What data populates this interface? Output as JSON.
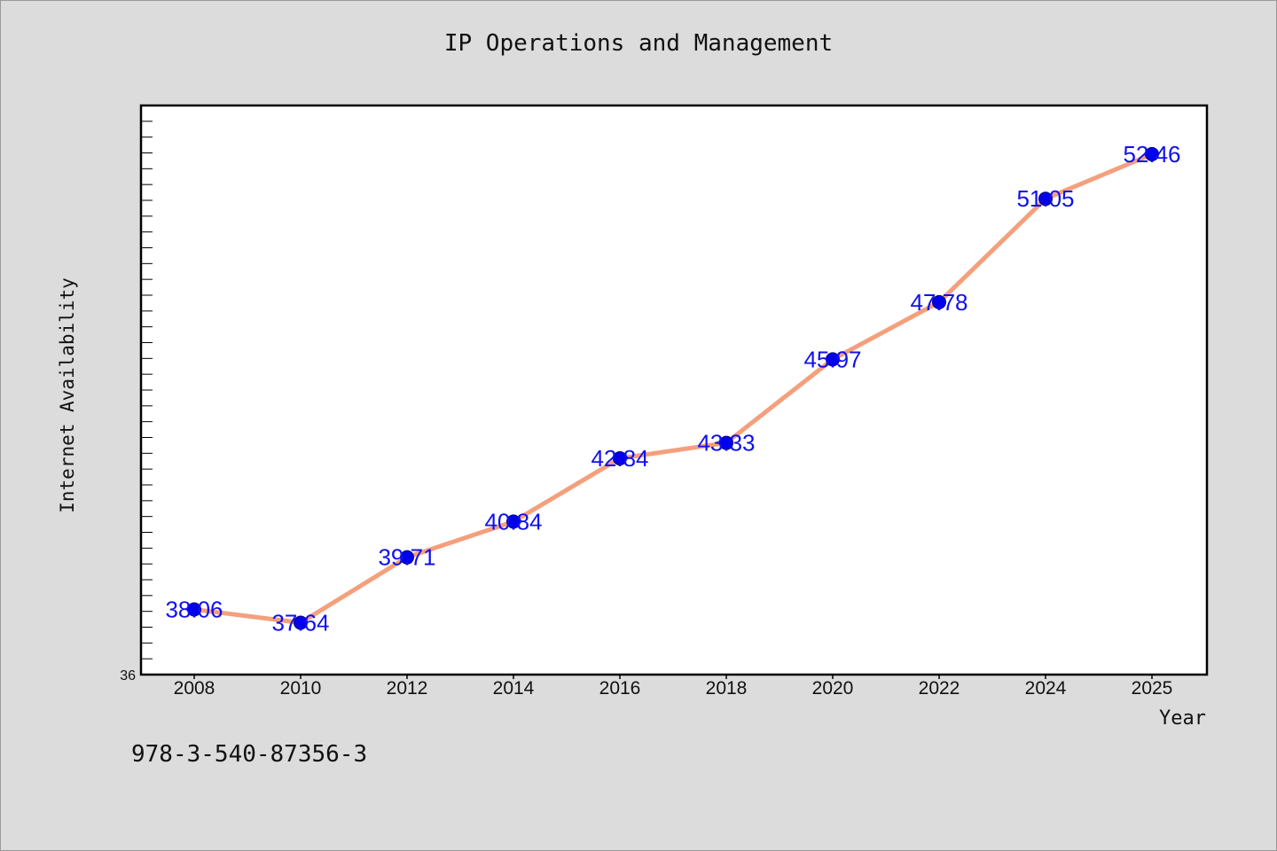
{
  "chart_data": {
    "type": "line",
    "title": "IP Operations and Management",
    "xlabel": "Year",
    "ylabel": "Internet Availability",
    "footnote": "978-3-540-87356-3",
    "x": [
      "2008",
      "2010",
      "2012",
      "2014",
      "2016",
      "2018",
      "2020",
      "2022",
      "2024",
      "2025"
    ],
    "series": [
      {
        "values": [
          38.06,
          37.64,
          39.71,
          40.84,
          42.84,
          43.33,
          45.97,
          47.78,
          51.05,
          52.46
        ]
      }
    ],
    "data_labels": [
      "38.06",
      "37.64",
      "39.71",
      "40.84",
      "42.84",
      "43.33",
      "45.97",
      "47.78",
      "51.05",
      "52.46"
    ],
    "ylim": [
      36,
      54
    ],
    "y_tick_labels": [
      "36"
    ],
    "grid": false,
    "line_color": "#f4a07c",
    "marker_color": "#0000ee",
    "label_color": "#1010ee",
    "plot_background": "#ffffff",
    "page_background": "#dcdcdc"
  }
}
